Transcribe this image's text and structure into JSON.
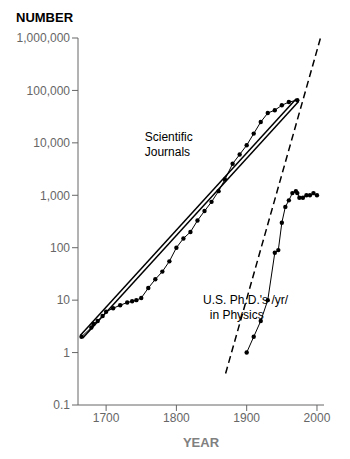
{
  "chart_data": {
    "type": "line",
    "xlabel": "YEAR",
    "ylabel": "NUMBER",
    "log": "y",
    "color": "#000000",
    "grid": false,
    "xlim": [
      1660,
      2010
    ],
    "xticks": [
      1700,
      1800,
      1900,
      2000
    ],
    "ylim": [
      0.1,
      1000000
    ],
    "yticks": [
      0.1,
      1,
      10,
      100,
      {
        "value": 1000,
        "label": "1,000"
      },
      {
        "value": 10000,
        "label": "10,000"
      },
      {
        "value": 100000,
        "label": "100,000"
      },
      {
        "value": 1000000,
        "label": "1,000,000"
      }
    ],
    "series": [
      {
        "x": [
          1870,
          2005
        ],
        "values": [
          0.4,
          1000000
        ],
        "line_style": "dashed",
        "marker": "none",
        "color": "#000000"
      },
      {
        "x": [
          1665,
          1972
        ],
        "values": [
          2,
          65000
        ],
        "line_style": "double",
        "marker": "none",
        "color": "#000000"
      },
      {
        "x": [
          1665,
          1679,
          1682,
          1688,
          1695,
          1700,
          1710,
          1720,
          1730,
          1737,
          1743,
          1750,
          1760,
          1770,
          1780,
          1790,
          1800,
          1810,
          1820,
          1830,
          1840,
          1850,
          1860,
          1869,
          1880,
          1890,
          1900,
          1910,
          1920,
          1930,
          1940,
          1950,
          1960,
          1972
        ],
        "values": [
          2,
          3,
          3.5,
          4,
          5,
          6,
          7,
          8,
          9,
          9.5,
          10,
          11,
          17,
          25,
          35,
          55,
          100,
          150,
          200,
          330,
          500,
          750,
          1200,
          2000,
          4000,
          6000,
          9000,
          15000,
          25000,
          37000,
          42000,
          52000,
          60000,
          65000
        ],
        "line_style": "solid",
        "marker": "circle",
        "color": "#000000"
      },
      {
        "x": [
          1900,
          1910,
          1920,
          1930,
          1940,
          1945,
          1950,
          1955,
          1960,
          1965,
          1970,
          1972,
          1975,
          1980,
          1985,
          1990,
          1995,
          2000
        ],
        "values": [
          1,
          2,
          4,
          10,
          80,
          90,
          300,
          600,
          800,
          1100,
          1200,
          1100,
          900,
          900,
          1000,
          1000,
          1100,
          1000
        ],
        "line_style": "solid",
        "marker": "circle",
        "color": "#000000"
      }
    ],
    "annotations": [
      {
        "text": "Scientific\nJournals",
        "x": 1755,
        "y": 9000
      },
      {
        "text": "U.S. Ph.D.'s /yr/\n  in Physics",
        "x": 1838,
        "y": 7
      }
    ]
  }
}
